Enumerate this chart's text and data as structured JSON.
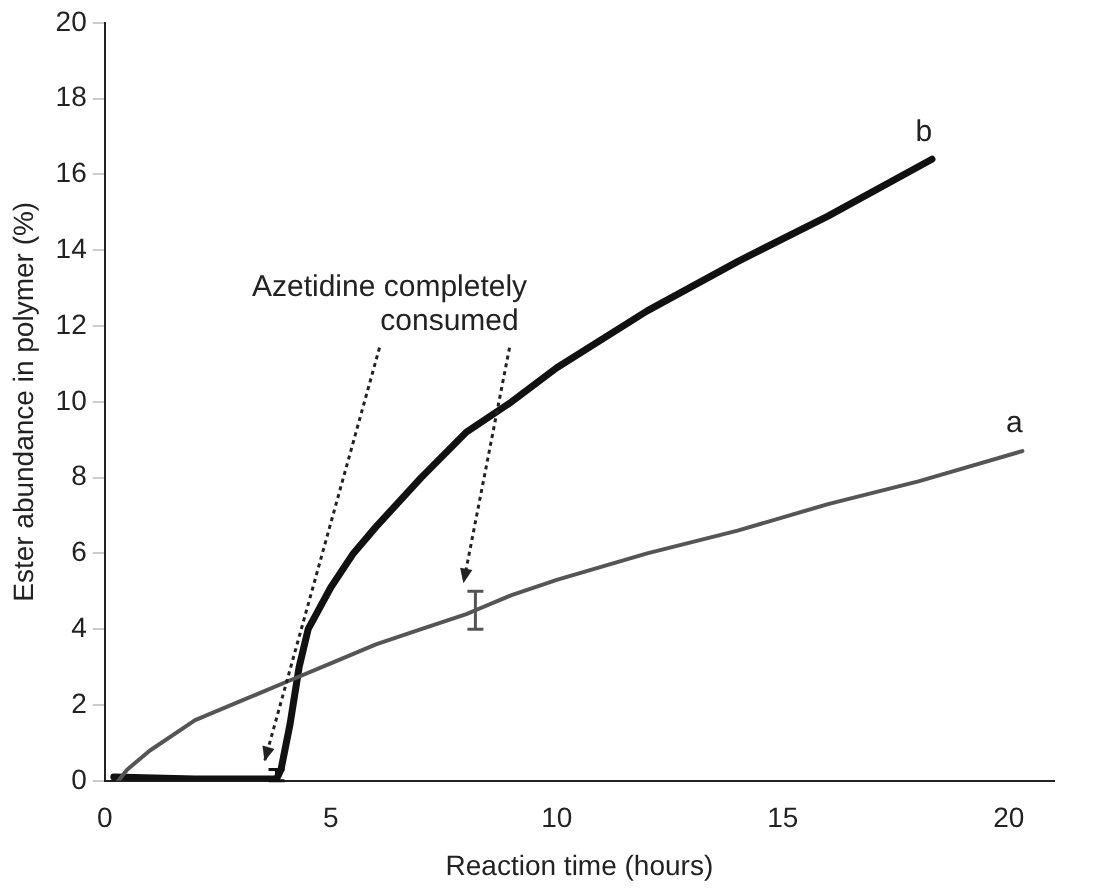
{
  "chart_data": {
    "type": "line",
    "xlabel": "Reaction time (hours)",
    "ylabel": "Ester abundance in polymer (%)",
    "xlim": [
      0,
      21
    ],
    "ylim": [
      0,
      20
    ],
    "xticks": [
      0,
      5,
      10,
      15,
      20
    ],
    "yticks": [
      0,
      2,
      4,
      6,
      8,
      10,
      12,
      14,
      16,
      18,
      20
    ],
    "grid": false,
    "legend": false,
    "marker": "none",
    "line_style": "solid",
    "annotations": [
      "Azetidine completely consumed"
    ],
    "series": [
      {
        "name": "a",
        "color": "#555555",
        "x": [
          0.3,
          0.5,
          1,
          2,
          3,
          4,
          5,
          6,
          7,
          8,
          8.2,
          9,
          10,
          12,
          14,
          16,
          18,
          20.3
        ],
        "values": [
          0,
          0.3,
          0.8,
          1.6,
          2.1,
          2.6,
          3.1,
          3.6,
          4.0,
          4.4,
          4.5,
          4.9,
          5.3,
          6.0,
          6.6,
          7.3,
          7.9,
          8.7
        ],
        "errors": [
          null,
          null,
          null,
          null,
          null,
          null,
          null,
          null,
          null,
          null,
          [
            4.0,
            5.0
          ],
          null,
          null,
          null,
          null,
          null,
          null,
          null
        ]
      },
      {
        "name": "b",
        "color": "#111111",
        "x": [
          0.2,
          2,
          3.8,
          3.9,
          4.1,
          4.3,
          4.5,
          5,
          5.5,
          6,
          7,
          8,
          9,
          10,
          12,
          14,
          16,
          18.3
        ],
        "values": [
          0.1,
          0.05,
          0.05,
          0.3,
          1.5,
          3.0,
          4.0,
          5.1,
          6.0,
          6.7,
          8.0,
          9.2,
          10.0,
          10.9,
          12.4,
          13.7,
          14.9,
          16.4
        ],
        "errors": [
          null,
          null,
          [
            0,
            0.3
          ],
          null,
          null,
          null,
          null,
          null,
          null,
          null,
          null,
          null,
          null,
          null,
          null,
          null,
          null,
          null
        ]
      }
    ]
  }
}
